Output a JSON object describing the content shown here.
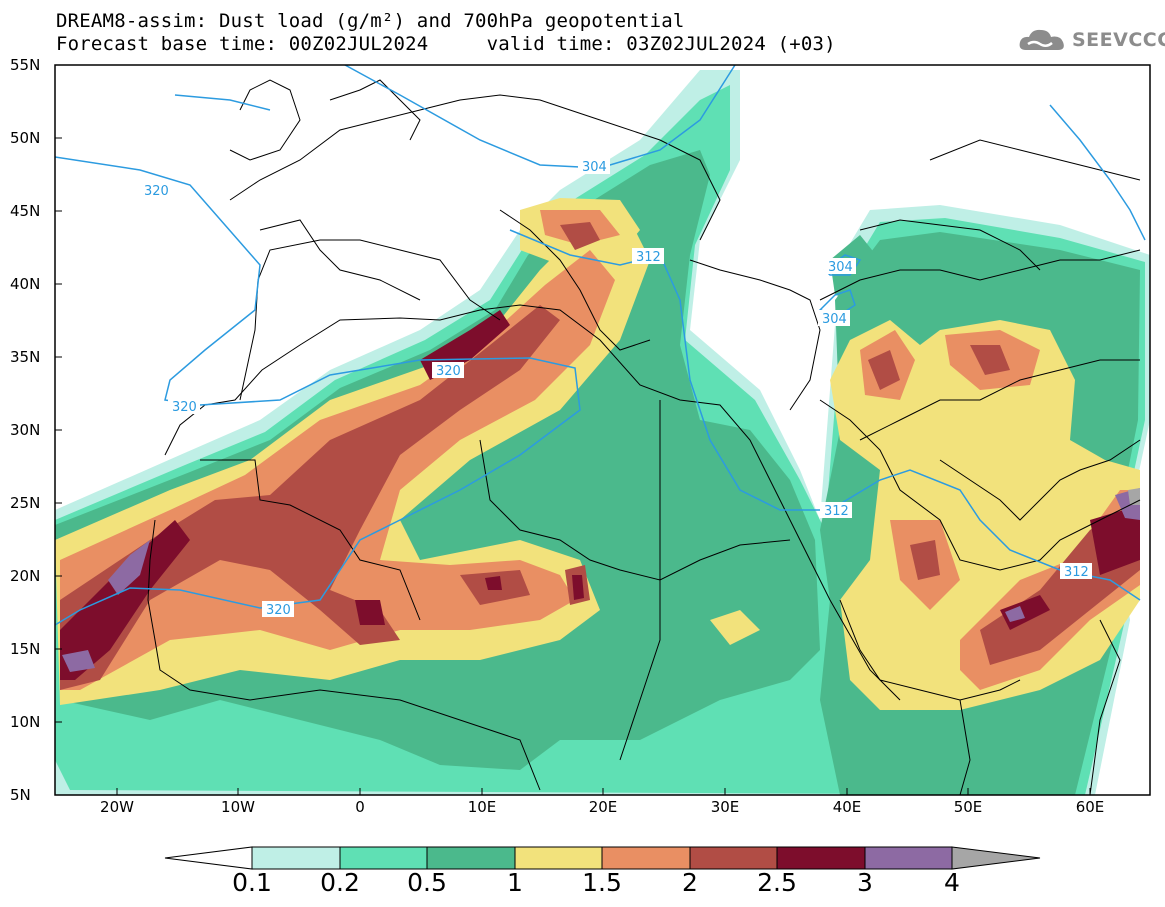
{
  "title": {
    "line1": "DREAM8-assim: Dust load (g/m²) and 700hPa geopotential",
    "line2": "Forecast base time: 00Z02JUL2024     valid time: 03Z02JUL2024 (+03)"
  },
  "logo": {
    "text": "SEEVCCC",
    "icon": "cloud-logo-icon"
  },
  "axes": {
    "lat_labels": [
      "55N",
      "50N",
      "45N",
      "40N",
      "35N",
      "30N",
      "25N",
      "20N",
      "15N",
      "10N",
      "5N"
    ],
    "lon_labels": [
      "20W",
      "10W",
      "0",
      "10E",
      "20E",
      "30E",
      "40E",
      "50E",
      "60E"
    ]
  },
  "contours": {
    "labels": [
      "320",
      "304",
      "320",
      "312",
      "304",
      "304",
      "320",
      "312",
      "312",
      "320"
    ]
  },
  "colorbar": {
    "labels": [
      "0.1",
      "0.2",
      "0.5",
      "1",
      "1.5",
      "2",
      "2.5",
      "3",
      "4"
    ],
    "colors": [
      "#ffffff",
      "#bfefe6",
      "#5fe0b4",
      "#4bb98c",
      "#f2e27c",
      "#e98f63",
      "#b14d45",
      "#7d0d2c",
      "#8d6aa3",
      "#a6a6a6"
    ]
  }
}
